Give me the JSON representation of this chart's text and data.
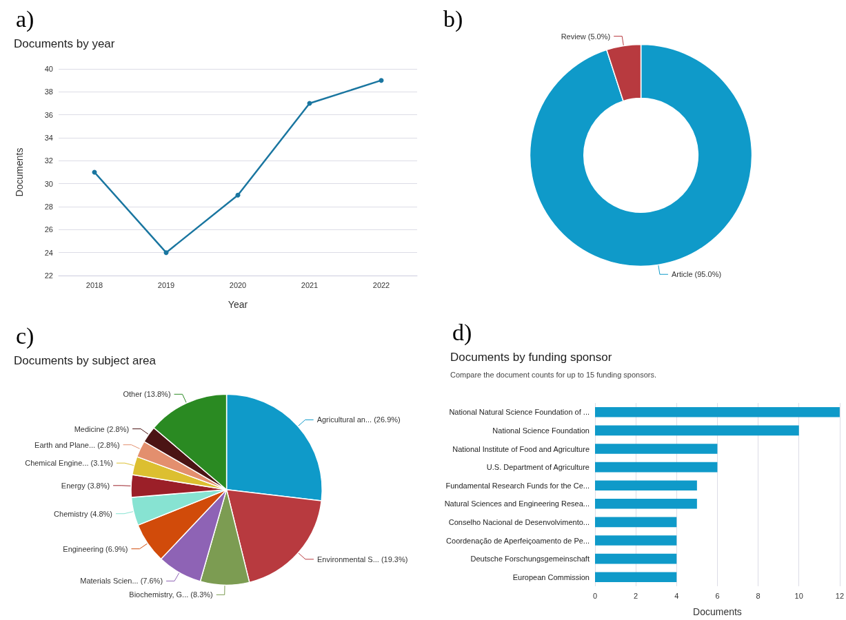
{
  "chart_data": [
    {
      "type": "line",
      "title": "Documents by year",
      "xlabel": "Year",
      "ylabel": "Documents",
      "annotations": [
        "a)"
      ],
      "categories": [
        "2018",
        "2019",
        "2020",
        "2021",
        "2022"
      ],
      "series": [
        {
          "color": "#1a76a0",
          "values": [
            31,
            24,
            29,
            37,
            39
          ]
        }
      ],
      "ylim": [
        22,
        40
      ],
      "yticks": [
        22,
        24,
        26,
        28,
        30,
        32,
        34,
        36,
        38,
        40
      ],
      "grid": "y",
      "marker": "circle",
      "line_style": "solid",
      "legend": false
    },
    {
      "type": "donut",
      "annotations": [
        "b)"
      ],
      "categories": [
        "Article",
        "Review"
      ],
      "values": [
        95.0,
        5.0
      ],
      "value_labels": [
        "(95.0%)",
        "(5.0%)"
      ],
      "colors": [
        "#0f9ac9",
        "#b83a3f"
      ],
      "legend": false
    },
    {
      "type": "pie",
      "title": "Documents by subject area",
      "annotations": [
        "c)"
      ],
      "categories": [
        "Agricultural an...",
        "Environmental S...",
        "Biochemistry, G...",
        "Materials Scien...",
        "Engineering",
        "Chemistry",
        "Energy",
        "Chemical Engine...",
        "Earth and Plane...",
        "Medicine",
        "Other"
      ],
      "values": [
        26.9,
        19.3,
        8.3,
        7.6,
        6.9,
        4.8,
        3.8,
        3.1,
        2.8,
        2.8,
        13.8
      ],
      "value_labels": [
        "(26.9%)",
        "(19.3%)",
        "(8.3%)",
        "(7.6%)",
        "(6.9%)",
        "(4.8%)",
        "(3.8%)",
        "(3.1%)",
        "(2.8%)",
        "(2.8%)",
        "(13.8%)"
      ],
      "colors": [
        "#0f9ac9",
        "#b83a3f",
        "#7c9c52",
        "#8e63b5",
        "#d14b0a",
        "#87e3d2",
        "#9b1f28",
        "#dcbf30",
        "#e38f6e",
        "#4b1414",
        "#2a8a22"
      ],
      "legend": false
    },
    {
      "type": "bar",
      "orientation": "horizontal",
      "title": "Documents by funding sponsor",
      "subtitle": "Compare the document counts for up to 15 funding sponsors.",
      "xlabel": "Documents",
      "annotations": [
        "d)"
      ],
      "categories": [
        "National Natural Science Foundation of ...",
        "National Science Foundation",
        "National Institute of Food and Agriculture",
        "U.S. Department of Agriculture",
        "Fundamental Research Funds for the Ce...",
        "Natural Sciences and Engineering Resea...",
        "Conselho Nacional de Desenvolvimento...",
        "Coordenação de Aperfeiçoamento de Pe...",
        "Deutsche Forschungsgemeinschaft",
        "European Commission"
      ],
      "values": [
        12,
        10,
        6,
        6,
        5,
        5,
        4,
        4,
        4,
        4
      ],
      "color": "#0f9ac9",
      "xlim": [
        0,
        12
      ],
      "xticks": [
        0,
        2,
        4,
        6,
        8,
        10,
        12
      ],
      "grid": "x",
      "legend": false
    }
  ]
}
